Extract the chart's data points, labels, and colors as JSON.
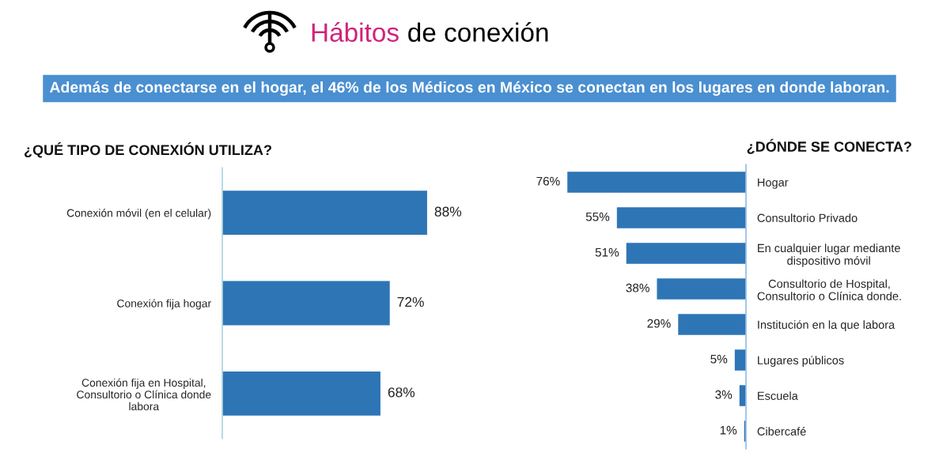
{
  "chart_data": [
    {
      "type": "bar",
      "orientation": "horizontal",
      "title": "¿QUÉ TIPO DE CONEXIÓN UTILIZA?",
      "annotations": [
        "Hábitos de conexión",
        "Además de conectarse en el hogar, el 46% de los Médicos en México se conectan en los lugares en donde laboran."
      ],
      "categories": [
        "Conexión móvil (en el celular)",
        "Conexión fija hogar",
        "Conexión fija en Hospital,\nConsultorio o Clínica donde\nlabora"
      ],
      "values": [
        88,
        72,
        68
      ],
      "value_labels": [
        "88%",
        "72%",
        "68%"
      ],
      "color": "#2e75b6",
      "tick_labels": "y"
    },
    {
      "type": "bar",
      "orientation": "horizontal",
      "title": "¿DÓNDE SE CONECTA?",
      "categories": [
        "Hogar",
        "Consultorio Privado",
        "En cualquier lugar mediante\ndispositivo móvil",
        "Consultorio de Hospital,\nConsultorio o Clínica donde.",
        "Institución en la que labora",
        "Lugares públicos",
        "Escuela",
        "Cibercafé"
      ],
      "values": [
        76,
        55,
        51,
        38,
        29,
        5,
        3,
        1
      ],
      "value_labels": [
        "76%",
        "55%",
        "51%",
        "38%",
        "29%",
        "5%",
        "3%",
        "1%"
      ],
      "color": "#2e75b6",
      "tick_labels": "y"
    }
  ]
}
